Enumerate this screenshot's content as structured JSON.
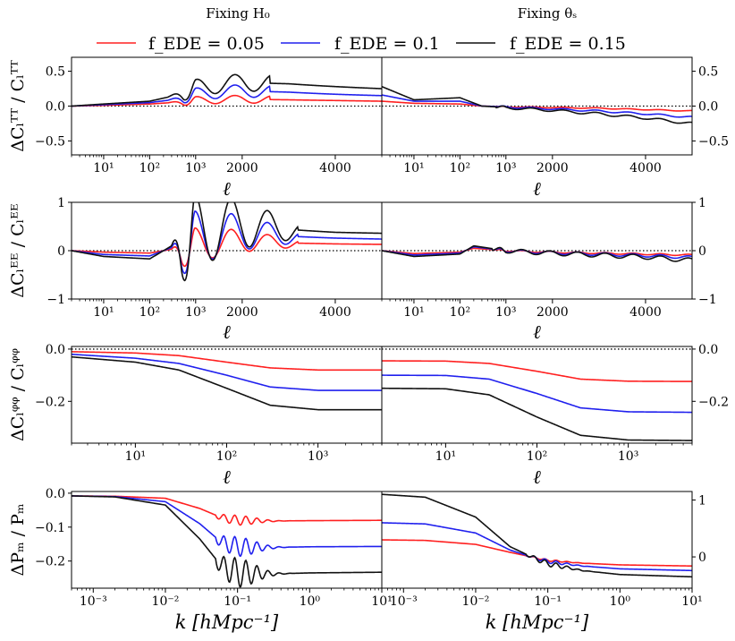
{
  "column_titles": [
    "Fixing H₀",
    "Fixing θₛ"
  ],
  "legend": [
    {
      "label": "f_EDE = 0.05",
      "color": "#ff2020"
    },
    {
      "label": "f_EDE = 0.1",
      "color": "#2020ee"
    },
    {
      "label": "f_EDE = 0.15",
      "color": "#111111"
    }
  ],
  "chart_data": [
    {
      "type": "line",
      "id": "tt",
      "title": "",
      "ylabel": "ΔCₗᵀᵀ / Cₗᵀᵀ",
      "xlabel": "ℓ",
      "xscale": "log-linear hybrid (log below 1000, linear above)",
      "xlim": [
        2,
        5000
      ],
      "ylim": [
        -0.7,
        0.7
      ],
      "x_ticks": [
        "10¹",
        "10²",
        "10³",
        "2000",
        "4000"
      ],
      "y_ticks": [
        "−0.5",
        "0.0",
        "0.5"
      ],
      "panels": [
        {
          "name": "Fixing H₀",
          "series": [
            {
              "name": "f_EDE = 0.05",
              "x": [
                2,
                10,
                100,
                300,
                1000,
                2000,
                3000,
                4000,
                5000
              ],
              "y": [
                0.0,
                0.01,
                0.03,
                0.05,
                0.08,
                0.1,
                0.09,
                0.08,
                0.07
              ]
            },
            {
              "name": "f_EDE = 0.1",
              "x": [
                2,
                10,
                100,
                300,
                1000,
                2000,
                3000,
                4000,
                5000
              ],
              "y": [
                0.0,
                0.02,
                0.05,
                0.09,
                0.17,
                0.22,
                0.2,
                0.17,
                0.15
              ]
            },
            {
              "name": "f_EDE = 0.15",
              "x": [
                2,
                10,
                100,
                300,
                1000,
                2000,
                3000,
                4000,
                5000
              ],
              "y": [
                0.0,
                0.03,
                0.07,
                0.14,
                0.26,
                0.34,
                0.32,
                0.28,
                0.25
              ]
            }
          ]
        },
        {
          "name": "Fixing θₛ",
          "series": [
            {
              "name": "f_EDE = 0.05",
              "x": [
                2,
                10,
                100,
                300,
                1000,
                2000,
                3000,
                4000,
                5000
              ],
              "y": [
                0.07,
                0.04,
                0.03,
                0.0,
                -0.01,
                -0.02,
                -0.03,
                -0.05,
                -0.07
              ]
            },
            {
              "name": "f_EDE = 0.1",
              "x": [
                2,
                10,
                100,
                300,
                1000,
                2000,
                3000,
                4000,
                5000
              ],
              "y": [
                0.16,
                0.07,
                0.07,
                0.0,
                -0.01,
                -0.04,
                -0.07,
                -0.11,
                -0.16
              ]
            },
            {
              "name": "f_EDE = 0.15",
              "x": [
                2,
                10,
                100,
                300,
                1000,
                2000,
                3000,
                4000,
                5000
              ],
              "y": [
                0.28,
                0.09,
                0.12,
                0.0,
                -0.02,
                -0.06,
                -0.11,
                -0.17,
                -0.25
              ]
            }
          ]
        }
      ]
    },
    {
      "type": "line",
      "id": "ee",
      "title": "",
      "ylabel": "ΔCₗᴱᴱ / Cₗᴱᴱ",
      "xlabel": "ℓ",
      "xscale": "log-linear hybrid (log below 1000, linear above)",
      "xlim": [
        2,
        5000
      ],
      "ylim": [
        -1,
        1
      ],
      "x_ticks": [
        "10¹",
        "10²",
        "10³",
        "2000",
        "4000"
      ],
      "y_ticks": [
        "−1",
        "0",
        "1"
      ],
      "panels": [
        {
          "name": "Fixing H₀",
          "series": [
            {
              "name": "f_EDE = 0.05",
              "x": [
                2,
                10,
                100,
                200,
                1000,
                2000,
                3000,
                4000,
                5000
              ],
              "y": [
                0.0,
                -0.03,
                -0.05,
                0.0,
                0.12,
                0.2,
                0.16,
                0.14,
                0.13
              ]
            },
            {
              "name": "f_EDE = 0.1",
              "x": [
                2,
                10,
                100,
                200,
                1000,
                2000,
                3000,
                4000,
                5000
              ],
              "y": [
                0.0,
                -0.08,
                -0.11,
                0.0,
                0.26,
                0.38,
                0.3,
                0.26,
                0.24
              ]
            },
            {
              "name": "f_EDE = 0.15",
              "x": [
                2,
                10,
                100,
                200,
                1000,
                2000,
                3000,
                4000,
                5000
              ],
              "y": [
                0.0,
                -0.12,
                -0.17,
                0.0,
                0.4,
                0.55,
                0.44,
                0.38,
                0.36
              ]
            }
          ]
        },
        {
          "name": "Fixing θₛ",
          "series": [
            {
              "name": "f_EDE = 0.05",
              "x": [
                2,
                10,
                100,
                200,
                1000,
                2000,
                3000,
                4000,
                5000
              ],
              "y": [
                0.0,
                -0.06,
                -0.03,
                0.05,
                0.0,
                -0.03,
                -0.05,
                -0.07,
                -0.09
              ]
            },
            {
              "name": "f_EDE = 0.1",
              "x": [
                2,
                10,
                100,
                200,
                1000,
                2000,
                3000,
                4000,
                5000
              ],
              "y": [
                0.0,
                -0.09,
                -0.05,
                0.08,
                0.0,
                -0.04,
                -0.07,
                -0.1,
                -0.14
              ]
            },
            {
              "name": "f_EDE = 0.15",
              "x": [
                2,
                10,
                100,
                200,
                1000,
                2000,
                3000,
                4000,
                5000
              ],
              "y": [
                0.0,
                -0.12,
                -0.07,
                0.1,
                0.0,
                -0.05,
                -0.09,
                -0.13,
                -0.2
              ]
            }
          ]
        }
      ]
    },
    {
      "type": "line",
      "id": "phiphi",
      "title": "",
      "ylabel": "ΔCₗᵠᵠ / Cₗᵠᵠ",
      "xlabel": "ℓ",
      "xscale": "log",
      "xlim": [
        2,
        5000
      ],
      "ylim": [
        -0.36,
        0.01
      ],
      "x_ticks": [
        "10¹",
        "10²",
        "10³"
      ],
      "y_ticks": [
        "−0.2",
        "0.0"
      ],
      "panels": [
        {
          "name": "Fixing H₀",
          "series": [
            {
              "name": "f_EDE = 0.05",
              "x": [
                2,
                10,
                30,
                100,
                300,
                1000,
                5000
              ],
              "y": [
                -0.01,
                -0.015,
                -0.025,
                -0.05,
                -0.072,
                -0.08,
                -0.08
              ]
            },
            {
              "name": "f_EDE = 0.1",
              "x": [
                2,
                10,
                30,
                100,
                300,
                1000,
                5000
              ],
              "y": [
                -0.02,
                -0.035,
                -0.055,
                -0.1,
                -0.145,
                -0.158,
                -0.158
              ]
            },
            {
              "name": "f_EDE = 0.15",
              "x": [
                2,
                10,
                30,
                100,
                300,
                1000,
                5000
              ],
              "y": [
                -0.03,
                -0.05,
                -0.08,
                -0.15,
                -0.215,
                -0.232,
                -0.232
              ]
            }
          ]
        },
        {
          "name": "Fixing θₛ",
          "series": [
            {
              "name": "f_EDE = 0.05",
              "x": [
                2,
                10,
                30,
                100,
                300,
                1000,
                5000
              ],
              "y": [
                -0.045,
                -0.046,
                -0.055,
                -0.085,
                -0.115,
                -0.123,
                -0.124
              ]
            },
            {
              "name": "f_EDE = 0.1",
              "x": [
                2,
                10,
                30,
                100,
                300,
                1000,
                5000
              ],
              "y": [
                -0.1,
                -0.101,
                -0.115,
                -0.17,
                -0.225,
                -0.24,
                -0.242
              ]
            },
            {
              "name": "f_EDE = 0.15",
              "x": [
                2,
                10,
                30,
                100,
                300,
                1000,
                5000
              ],
              "y": [
                -0.15,
                -0.152,
                -0.175,
                -0.26,
                -0.33,
                -0.348,
                -0.35
              ]
            }
          ]
        }
      ]
    },
    {
      "type": "line",
      "id": "pm",
      "title": "",
      "ylabel": "ΔPₘ / Pₘ",
      "xlabel": "k [hMpc⁻¹]",
      "xscale": "log",
      "xlim": [
        0.0005,
        10
      ],
      "x_ticks": [
        "10⁻³",
        "10⁻²",
        "10⁻¹",
        "10⁰",
        "10¹"
      ],
      "panels": [
        {
          "name": "Fixing H₀",
          "ylim": [
            -0.28,
            0.005
          ],
          "y_ticks": [
            "−0.2",
            "−0.1",
            "0.0"
          ],
          "series": [
            {
              "name": "f_EDE = 0.05",
              "x": [
                0.0005,
                0.002,
                0.01,
                0.03,
                0.06,
                0.1,
                0.3,
                1,
                10
              ],
              "y": [
                -0.008,
                -0.009,
                -0.015,
                -0.045,
                -0.072,
                -0.08,
                -0.082,
                -0.081,
                -0.08
              ]
            },
            {
              "name": "f_EDE = 0.1",
              "x": [
                0.0005,
                0.002,
                0.01,
                0.03,
                0.06,
                0.1,
                0.3,
                1,
                10
              ],
              "y": [
                -0.008,
                -0.01,
                -0.025,
                -0.09,
                -0.145,
                -0.158,
                -0.16,
                -0.158,
                -0.157
              ]
            },
            {
              "name": "f_EDE = 0.15",
              "x": [
                0.0005,
                0.002,
                0.01,
                0.03,
                0.06,
                0.1,
                0.3,
                1,
                10
              ],
              "y": [
                -0.008,
                -0.011,
                -0.035,
                -0.135,
                -0.215,
                -0.235,
                -0.238,
                -0.235,
                -0.233
              ]
            }
          ]
        },
        {
          "name": "Fixing θₛ",
          "ylim": [
            -0.55,
            1.15
          ],
          "y_ticks": [
            "0",
            "1"
          ],
          "series": [
            {
              "name": "f_EDE = 0.05",
              "x": [
                0.0005,
                0.002,
                0.01,
                0.03,
                0.06,
                0.1,
                0.3,
                1,
                10
              ],
              "y": [
                0.3,
                0.29,
                0.22,
                0.08,
                0.0,
                -0.06,
                -0.11,
                -0.14,
                -0.16
              ]
            },
            {
              "name": "f_EDE = 0.1",
              "x": [
                0.0005,
                0.002,
                0.01,
                0.03,
                0.06,
                0.1,
                0.3,
                1,
                10
              ],
              "y": [
                0.6,
                0.58,
                0.42,
                0.12,
                0.0,
                -0.08,
                -0.16,
                -0.21,
                -0.24
              ]
            },
            {
              "name": "f_EDE = 0.15",
              "x": [
                0.0005,
                0.002,
                0.01,
                0.03,
                0.06,
                0.1,
                0.3,
                1,
                10
              ],
              "y": [
                1.1,
                1.05,
                0.7,
                0.18,
                0.0,
                -0.12,
                -0.24,
                -0.31,
                -0.35
              ]
            }
          ]
        }
      ]
    }
  ]
}
